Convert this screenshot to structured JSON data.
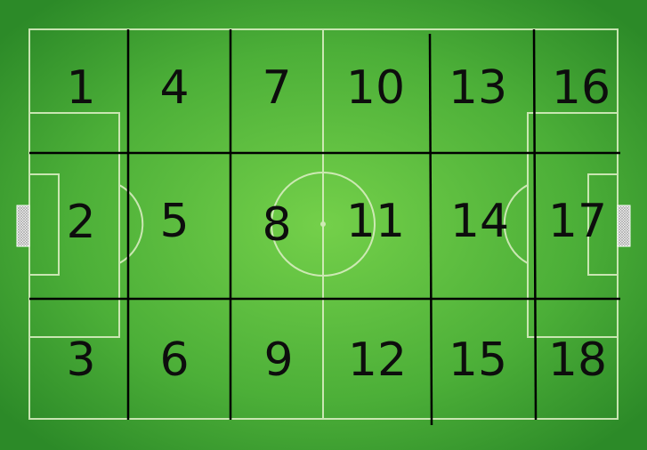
{
  "zones": [
    {
      "id": 1,
      "label": "1"
    },
    {
      "id": 2,
      "label": "2"
    },
    {
      "id": 3,
      "label": "3"
    },
    {
      "id": 4,
      "label": "4"
    },
    {
      "id": 5,
      "label": "5"
    },
    {
      "id": 6,
      "label": "6"
    },
    {
      "id": 7,
      "label": "7"
    },
    {
      "id": 8,
      "label": "8"
    },
    {
      "id": 9,
      "label": "9"
    },
    {
      "id": 10,
      "label": "10"
    },
    {
      "id": 11,
      "label": "11"
    },
    {
      "id": 12,
      "label": "12"
    },
    {
      "id": 13,
      "label": "13"
    },
    {
      "id": 14,
      "label": "14"
    },
    {
      "id": 15,
      "label": "15"
    },
    {
      "id": 16,
      "label": "16"
    },
    {
      "id": 17,
      "label": "17"
    },
    {
      "id": 18,
      "label": "18"
    }
  ],
  "colors": {
    "grass_center": "#6fcb45",
    "grass_edge": "#2f8f2a",
    "pitch_lines": "#d8edc0",
    "grid_lines": "#000000",
    "numbers": "#0d0d0d"
  }
}
